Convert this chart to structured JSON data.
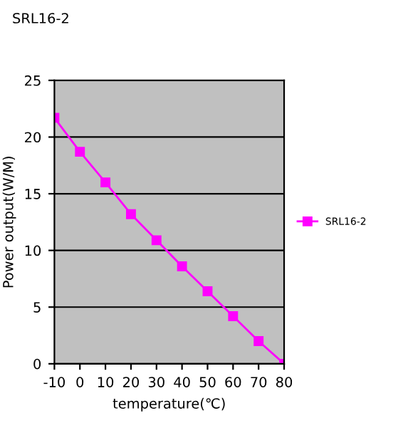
{
  "chart_data": {
    "type": "line",
    "title": "SRL16-2",
    "xlabel": "temperature(℃)",
    "ylabel": "Power output(W/M)",
    "x": [
      -10,
      0,
      10,
      20,
      30,
      40,
      50,
      60,
      70,
      80
    ],
    "series": [
      {
        "name": "SRL16-2",
        "color": "#ff00ff",
        "values": [
          21.7,
          18.7,
          16.0,
          13.2,
          10.9,
          8.6,
          6.4,
          4.2,
          2.0,
          0
        ]
      }
    ],
    "xlim": [
      -10,
      80
    ],
    "xticks": [
      -10,
      0,
      10,
      20,
      30,
      40,
      50,
      60,
      70,
      80
    ],
    "ylim": [
      0,
      25
    ],
    "yticks": [
      0,
      5,
      10,
      15,
      20,
      25
    ],
    "grid": "y",
    "legend": "right",
    "marker": "square",
    "line_style": "solid"
  }
}
